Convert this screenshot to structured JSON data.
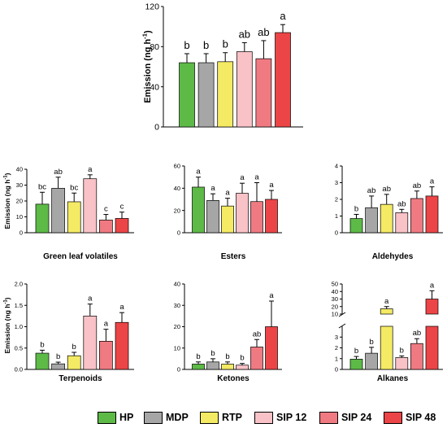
{
  "colors": {
    "HP": "#5dba47",
    "MDP": "#a6a6a6",
    "RTP": "#f4ea64",
    "SIP 12": "#f9c2c7",
    "SIP 24": "#f07a82",
    "SIP 48": "#ec4547"
  },
  "legend": [
    {
      "label": "HP",
      "color": "#5dba47"
    },
    {
      "label": "MDP",
      "color": "#a6a6a6"
    },
    {
      "label": "RTP",
      "color": "#f4ea64"
    },
    {
      "label": "SIP 12",
      "color": "#f9c2c7"
    },
    {
      "label": "SIP 24",
      "color": "#f07a82"
    },
    {
      "label": "SIP 48",
      "color": "#ec4547"
    }
  ],
  "chart_data": [
    {
      "type": "bar",
      "title": "",
      "ylabel": "Emission (ng h-1)",
      "unit": "h-1",
      "categories": [
        "HP",
        "MDP",
        "RTP",
        "SIP 12",
        "SIP 24",
        "SIP 48"
      ],
      "values": [
        64,
        64,
        65,
        75,
        68,
        94
      ],
      "errors": [
        9,
        9,
        9,
        9,
        18,
        8
      ],
      "letters": [
        "b",
        "b",
        "b",
        "ab",
        "ab",
        "a"
      ],
      "ylim": [
        0,
        120
      ],
      "yticks": [
        "0",
        "40",
        "80",
        "120"
      ]
    },
    {
      "type": "bar",
      "title": "Green leaf volatiles",
      "ylabel": "Emission (ng h-1)",
      "unit": "h-1",
      "categories": [
        "HP",
        "MDP",
        "RTP",
        "SIP 12",
        "SIP 24",
        "SIP 48"
      ],
      "values": [
        18,
        28,
        19.5,
        34,
        8,
        9
      ],
      "errors": [
        7.5,
        7,
        5.5,
        2.5,
        3.5,
        4
      ],
      "letters": [
        "bc",
        "ab",
        "bc",
        "a",
        "c",
        "c"
      ],
      "ylim": [
        0,
        40
      ],
      "yticks": [
        "0",
        "10",
        "20",
        "30",
        "40"
      ]
    },
    {
      "type": "bar",
      "title": "Esters",
      "ylabel": "",
      "categories": [
        "HP",
        "MDP",
        "RTP",
        "SIP 12",
        "SIP 24",
        "SIP 48"
      ],
      "values": [
        41,
        29,
        24,
        35.5,
        28,
        30
      ],
      "errors": [
        9,
        6,
        7,
        9,
        17,
        8
      ],
      "letters": [
        "a",
        "a",
        "a",
        "a",
        "a",
        "a"
      ],
      "ylim": [
        0,
        60
      ],
      "yticks": [
        "0",
        "20",
        "40",
        "60"
      ]
    },
    {
      "type": "bar",
      "title": "Aldehydes",
      "ylabel": "",
      "categories": [
        "HP",
        "MDP",
        "RTP",
        "SIP 12",
        "SIP 24",
        "SIP 48"
      ],
      "values": [
        0.85,
        1.5,
        1.7,
        1.2,
        2.05,
        2.2
      ],
      "errors": [
        0.25,
        0.7,
        0.6,
        0.2,
        0.45,
        0.55
      ],
      "letters": [
        "b",
        "ab",
        "ab",
        "ab",
        "ab",
        "a"
      ],
      "ylim": [
        0,
        4
      ],
      "yticks": [
        "0",
        "1",
        "2",
        "3",
        "4"
      ]
    },
    {
      "type": "bar",
      "title": "Terpenoids",
      "ylabel": "Emission (ng h-1)",
      "unit": "h-1",
      "categories": [
        "HP",
        "MDP",
        "RTP",
        "SIP 12",
        "SIP 24",
        "SIP 48"
      ],
      "values": [
        0.38,
        0.13,
        0.32,
        1.25,
        0.66,
        1.1
      ],
      "errors": [
        0.07,
        0.04,
        0.08,
        0.28,
        0.28,
        0.23
      ],
      "letters": [
        "b",
        "b",
        "b",
        "a",
        "a",
        "a"
      ],
      "ylim": [
        0,
        2
      ],
      "yticks": [
        "0.0",
        "0.5",
        "1.0",
        "1.5",
        "2.0"
      ]
    },
    {
      "type": "bar",
      "title": "Ketones",
      "ylabel": "",
      "categories": [
        "HP",
        "MDP",
        "RTP",
        "SIP 12",
        "SIP 24",
        "SIP 48"
      ],
      "values": [
        2.5,
        3.5,
        2.5,
        2,
        10.5,
        20
      ],
      "errors": [
        1,
        1.5,
        1,
        0.8,
        3.5,
        12
      ],
      "letters": [
        "b",
        "b",
        "b",
        "b",
        "ab",
        "a"
      ],
      "ylim": [
        0,
        40
      ],
      "yticks": [
        "0",
        "10",
        "20",
        "30",
        "40"
      ]
    },
    {
      "type": "bar",
      "title": "Alkanes",
      "ylabel": "",
      "broken_axis": true,
      "categories": [
        "HP",
        "MDP",
        "RTP",
        "SIP 12",
        "SIP 24",
        "SIP 48"
      ],
      "values": [
        0.95,
        1.5,
        17,
        1.1,
        2.4,
        30
      ],
      "errors": [
        0.25,
        0.55,
        3,
        0.15,
        0.45,
        11
      ],
      "letters": [
        "b",
        "b",
        "a",
        "b",
        "ab",
        "a"
      ],
      "ylim": [
        0,
        50
      ],
      "yticks": [
        "0",
        "1",
        "2",
        "3",
        "10",
        "20",
        "30",
        "40",
        "50"
      ]
    }
  ]
}
